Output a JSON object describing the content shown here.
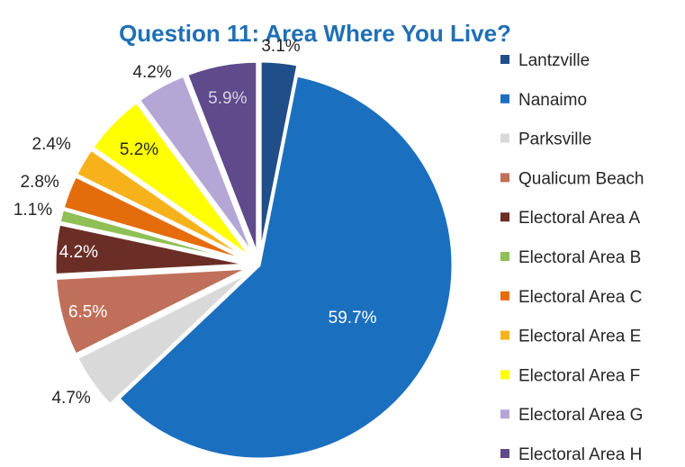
{
  "chart_data": {
    "type": "pie",
    "title": "Question 11: Area Where You Live?",
    "legend_position": "right",
    "slices": [
      {
        "name": "Lantzville",
        "value": 3.1,
        "label": "3.1%",
        "color": "#1F4E89",
        "label_color": "#262626"
      },
      {
        "name": "Nanaimo",
        "value": 59.7,
        "label": "59.7%",
        "color": "#1B6FBF",
        "label_color": "#FFFFFF"
      },
      {
        "name": "Parksville",
        "value": 4.7,
        "label": "4.7%",
        "color": "#D9D9D9",
        "label_color": "#262626"
      },
      {
        "name": "Qualicum Beach",
        "value": 6.5,
        "label": "6.5%",
        "color": "#C0705A",
        "label_color": "#FFFFFF"
      },
      {
        "name": "Electoral Area A",
        "value": 4.2,
        "label": "4.2%",
        "color": "#6B2E26",
        "label_color": "#FFFFFF"
      },
      {
        "name": "Electoral Area B",
        "value": 1.1,
        "label": "1.1%",
        "color": "#8FBF55",
        "label_color": "#262626"
      },
      {
        "name": "Electoral Area C",
        "value": 2.8,
        "label": "2.8%",
        "color": "#E46C0A",
        "label_color": "#262626"
      },
      {
        "name": "Electoral Area E",
        "value": 2.4,
        "label": "2.4%",
        "color": "#F7B21B",
        "label_color": "#262626"
      },
      {
        "name": "Electoral Area F",
        "value": 5.2,
        "label": "5.2%",
        "color": "#FFFF00",
        "label_color": "#262626"
      },
      {
        "name": "Electoral Area G",
        "value": 4.2,
        "label": "4.2%",
        "color": "#B4A7D6",
        "label_color": "#262626"
      },
      {
        "name": "Electoral Area H",
        "value": 5.9,
        "label": "5.9%",
        "color": "#5F4A8B",
        "label_color": "#D9D2E9"
      }
    ]
  },
  "colors": {
    "title": "#1F6FB5",
    "background": "#FFFFFF",
    "slice_separator": "#FFFFFF"
  }
}
